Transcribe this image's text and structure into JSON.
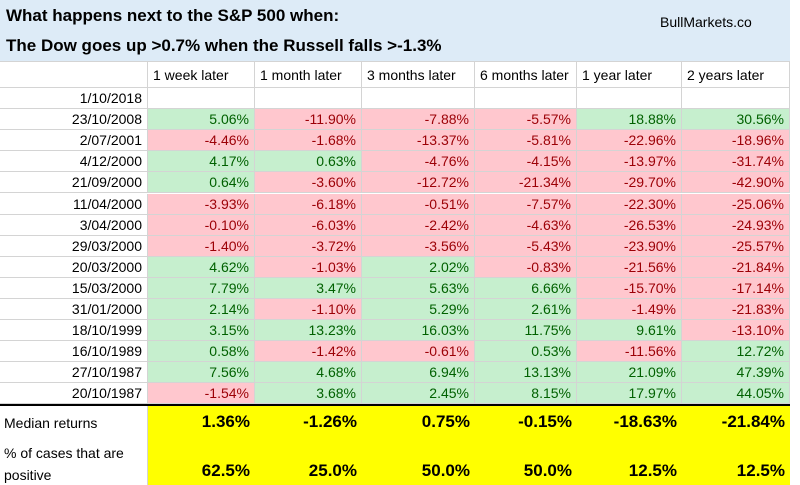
{
  "header": {
    "title": "What happens next to the S&P 500 when:",
    "subtitle": "The Dow goes up >0.7% when the Russell falls >-1.3%",
    "source": "BullMarkets.co"
  },
  "table": {
    "columns": [
      "1 week later",
      "1 month later",
      "3 months later",
      "6 months later",
      "1 year later",
      "2 years later"
    ],
    "rows": [
      {
        "date": "1/10/2018",
        "cells": []
      },
      {
        "date": "23/10/2008",
        "cells": [
          "5.06%",
          "-11.90%",
          "-7.88%",
          "-5.57%",
          "18.88%",
          "30.56%"
        ]
      },
      {
        "date": "2/07/2001",
        "cells": [
          "-4.46%",
          "-1.68%",
          "-13.37%",
          "-5.81%",
          "-22.96%",
          "-18.96%"
        ]
      },
      {
        "date": "4/12/2000",
        "cells": [
          "4.17%",
          "0.63%",
          "-4.76%",
          "-4.15%",
          "-13.97%",
          "-31.74%"
        ]
      },
      {
        "date": "21/09/2000",
        "cells": [
          "0.64%",
          "-3.60%",
          "-12.72%",
          "-21.34%",
          "-29.70%",
          "-42.90%"
        ]
      },
      {
        "date": "11/04/2000",
        "cells": [
          "-3.93%",
          "-6.18%",
          "-0.51%",
          "-7.57%",
          "-22.30%",
          "-25.06%"
        ]
      },
      {
        "date": "3/04/2000",
        "cells": [
          "-0.10%",
          "-6.03%",
          "-2.42%",
          "-4.63%",
          "-26.53%",
          "-24.93%"
        ]
      },
      {
        "date": "29/03/2000",
        "cells": [
          "-1.40%",
          "-3.72%",
          "-3.56%",
          "-5.43%",
          "-23.90%",
          "-25.57%"
        ]
      },
      {
        "date": "20/03/2000",
        "cells": [
          "4.62%",
          "-1.03%",
          "2.02%",
          "-0.83%",
          "-21.56%",
          "-21.84%"
        ]
      },
      {
        "date": "15/03/2000",
        "cells": [
          "7.79%",
          "3.47%",
          "5.63%",
          "6.66%",
          "-15.70%",
          "-17.14%"
        ]
      },
      {
        "date": "31/01/2000",
        "cells": [
          "2.14%",
          "-1.10%",
          "5.29%",
          "2.61%",
          "-1.49%",
          "-21.83%"
        ]
      },
      {
        "date": "18/10/1999",
        "cells": [
          "3.15%",
          "13.23%",
          "16.03%",
          "11.75%",
          "9.61%",
          "-13.10%"
        ]
      },
      {
        "date": "16/10/1989",
        "cells": [
          "0.58%",
          "-1.42%",
          "-0.61%",
          "0.53%",
          "-11.56%",
          "12.72%"
        ]
      },
      {
        "date": "27/10/1987",
        "cells": [
          "7.56%",
          "4.68%",
          "6.94%",
          "13.13%",
          "21.09%",
          "47.39%"
        ]
      },
      {
        "date": "20/10/1987",
        "cells": [
          "-1.54%",
          "3.68%",
          "2.45%",
          "8.15%",
          "17.97%",
          "44.05%"
        ]
      }
    ],
    "summary": [
      {
        "label": "Median returns",
        "cells": [
          "1.36%",
          "-1.26%",
          "0.75%",
          "-0.15%",
          "-18.63%",
          "-21.84%"
        ]
      },
      {
        "label": "% of cases that are positive",
        "cells": [
          "62.5%",
          "25.0%",
          "50.0%",
          "50.0%",
          "12.5%",
          "12.5%"
        ]
      }
    ]
  }
}
